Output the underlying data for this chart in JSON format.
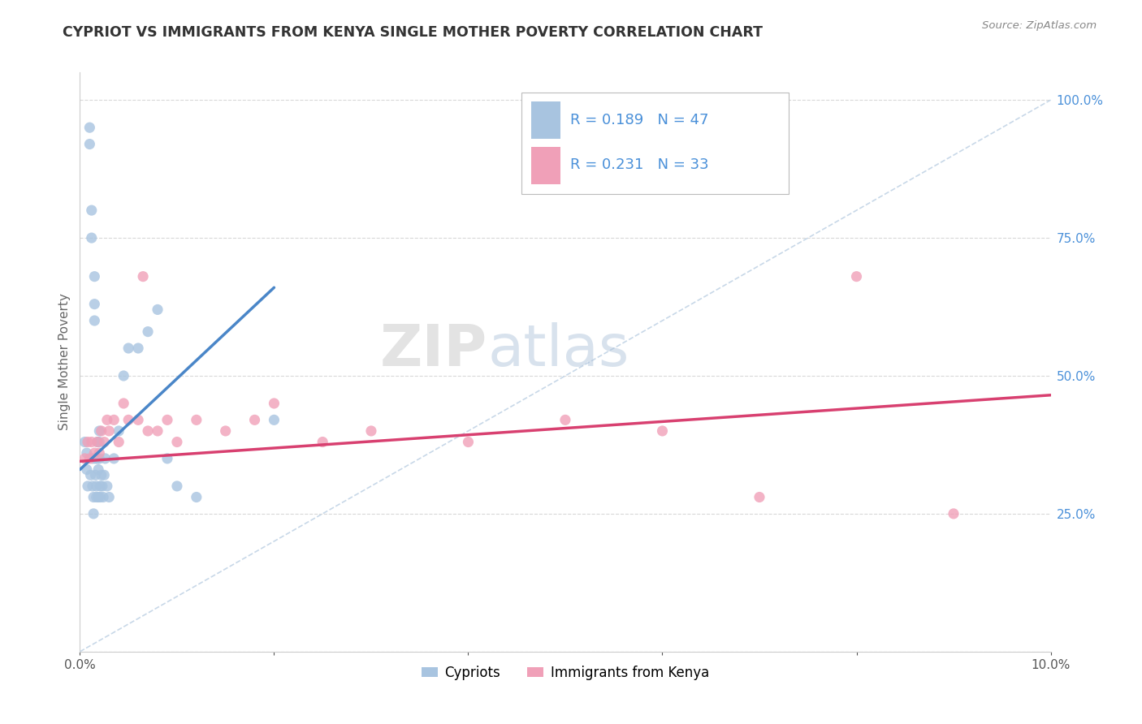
{
  "title": "CYPRIOT VS IMMIGRANTS FROM KENYA SINGLE MOTHER POVERTY CORRELATION CHART",
  "source": "Source: ZipAtlas.com",
  "ylabel": "Single Mother Poverty",
  "xlim": [
    0.0,
    0.1
  ],
  "ylim": [
    0.0,
    1.05
  ],
  "y_ticks_right": [
    0.0,
    0.25,
    0.5,
    0.75,
    1.0
  ],
  "y_tick_labels_right": [
    "",
    "25.0%",
    "50.0%",
    "75.0%",
    "100.0%"
  ],
  "legend_label1": "Cypriots",
  "legend_label2": "Immigrants from Kenya",
  "R1": 0.189,
  "N1": 47,
  "R2": 0.231,
  "N2": 33,
  "color_blue": "#a8c4e0",
  "color_pink": "#f0a0b8",
  "line_color_blue": "#4a86c8",
  "line_color_pink": "#d84070",
  "diag_color": "#c8d8e8",
  "watermark_zip": "ZIP",
  "watermark_atlas": "atlas",
  "title_color": "#333333",
  "source_color": "#888888",
  "ylabel_color": "#666666",
  "tick_color": "#555555",
  "right_tick_color": "#4a90d9",
  "grid_color": "#d8d8d8",
  "cypriot_x": [
    0.0005,
    0.0007,
    0.0007,
    0.0008,
    0.001,
    0.001,
    0.0011,
    0.0012,
    0.0012,
    0.0013,
    0.0013,
    0.0014,
    0.0014,
    0.0015,
    0.0015,
    0.0015,
    0.0016,
    0.0016,
    0.0017,
    0.0017,
    0.0018,
    0.0018,
    0.0019,
    0.0019,
    0.002,
    0.002,
    0.002,
    0.0021,
    0.0021,
    0.0022,
    0.0023,
    0.0024,
    0.0025,
    0.0026,
    0.0028,
    0.003,
    0.0035,
    0.004,
    0.0045,
    0.005,
    0.006,
    0.007,
    0.008,
    0.009,
    0.01,
    0.012,
    0.02
  ],
  "cypriot_y": [
    0.38,
    0.36,
    0.33,
    0.3,
    0.95,
    0.92,
    0.32,
    0.8,
    0.75,
    0.35,
    0.3,
    0.28,
    0.25,
    0.68,
    0.63,
    0.6,
    0.35,
    0.32,
    0.3,
    0.28,
    0.38,
    0.35,
    0.33,
    0.28,
    0.4,
    0.38,
    0.35,
    0.3,
    0.28,
    0.32,
    0.3,
    0.28,
    0.32,
    0.35,
    0.3,
    0.28,
    0.35,
    0.4,
    0.5,
    0.55,
    0.55,
    0.58,
    0.62,
    0.35,
    0.3,
    0.28,
    0.42
  ],
  "kenya_x": [
    0.0005,
    0.0008,
    0.001,
    0.0012,
    0.0015,
    0.0018,
    0.002,
    0.0022,
    0.0025,
    0.0028,
    0.003,
    0.0035,
    0.004,
    0.0045,
    0.005,
    0.006,
    0.0065,
    0.007,
    0.008,
    0.009,
    0.01,
    0.012,
    0.015,
    0.018,
    0.02,
    0.025,
    0.03,
    0.04,
    0.05,
    0.06,
    0.07,
    0.08,
    0.09
  ],
  "kenya_y": [
    0.35,
    0.38,
    0.35,
    0.38,
    0.36,
    0.38,
    0.36,
    0.4,
    0.38,
    0.42,
    0.4,
    0.42,
    0.38,
    0.45,
    0.42,
    0.42,
    0.68,
    0.4,
    0.4,
    0.42,
    0.38,
    0.42,
    0.4,
    0.42,
    0.45,
    0.38,
    0.4,
    0.38,
    0.42,
    0.4,
    0.28,
    0.68,
    0.25
  ]
}
